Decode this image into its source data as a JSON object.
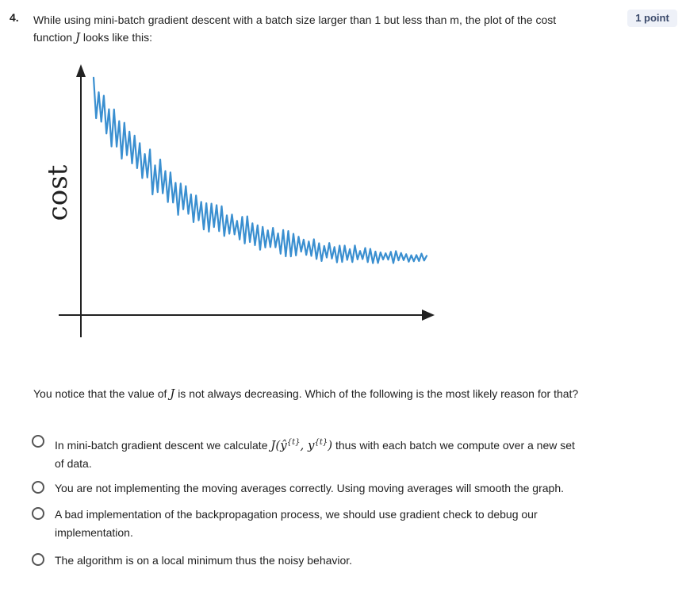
{
  "question": {
    "number": "4.",
    "stem_part1": "While using mini-batch gradient descent with a batch size larger than 1 but less than m, the plot of the cost function",
    "stem_var": "J",
    "stem_part2": "looks like this:",
    "points": "1 point",
    "followup_part1": "You notice that the value of",
    "followup_var": "J",
    "followup_part2": "is not always decreasing. Which of the following is the most likely reason for that?"
  },
  "figure": {
    "y_axis_label": "cost",
    "line_color": "#3a8fd0"
  },
  "options": [
    {
      "text_before": "In mini-batch gradient descent we calculate",
      "math": "J(ŷ",
      "sup1": "{t}",
      "math2": ", y",
      "sup2": "{t}",
      "math3": ")",
      "text_after": "thus with each batch we compute over a new set of data."
    },
    {
      "text": "You are not implementing the moving averages correctly. Using moving averages will smooth the graph."
    },
    {
      "text": "A bad implementation of the backpropagation process, we should use gradient check to debug our implementation."
    },
    {
      "text": "The algorithm is on a local minimum thus the noisy behavior."
    }
  ]
}
